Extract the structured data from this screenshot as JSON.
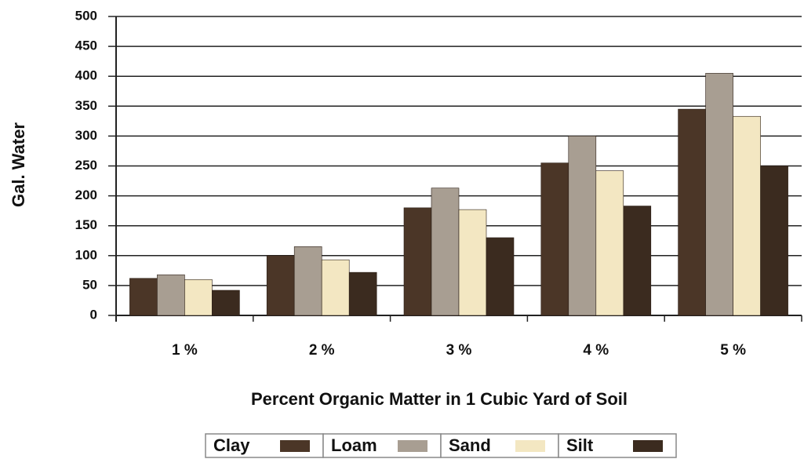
{
  "chart_data": {
    "type": "bar",
    "y_label": "Gal. Water",
    "x_label": "Percent Organic Matter in 1 Cubic Yard of Soil",
    "categories": [
      "1 %",
      "2 %",
      "3 %",
      "4 %",
      "5 %"
    ],
    "series": [
      {
        "name": "Clay",
        "color": "#4b3627",
        "values": [
          62,
          100,
          180,
          255,
          345
        ]
      },
      {
        "name": "Loam",
        "color": "#a89e92",
        "values": [
          68,
          115,
          213,
          300,
          405
        ]
      },
      {
        "name": "Sand",
        "color": "#f3e7c2",
        "values": [
          60,
          93,
          177,
          242,
          333
        ]
      },
      {
        "name": "Silt",
        "color": "#3b2b1f",
        "values": [
          42,
          72,
          130,
          183,
          250
        ]
      }
    ],
    "ylim": [
      0,
      500
    ],
    "yticks": [
      0,
      50,
      100,
      150,
      200,
      250,
      300,
      350,
      400,
      450,
      500
    ],
    "grid": true,
    "legend": "bottom"
  }
}
